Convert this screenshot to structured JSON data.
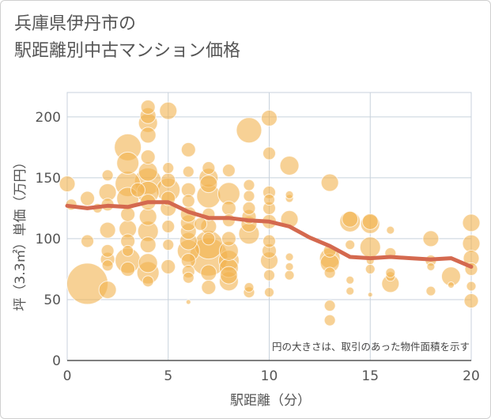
{
  "chart_data": {
    "type": "scatter",
    "title_lines": [
      "兵庫県伊丹市の",
      "駅距離別中古マンション価格"
    ],
    "xlabel": "駅距離（分）",
    "ylabel": "坪（3.3㎡）単価（万円）",
    "xlim": [
      0,
      20
    ],
    "ylim": [
      0,
      220
    ],
    "x_ticks": [
      0,
      5,
      10,
      15,
      20
    ],
    "y_ticks": [
      0,
      50,
      100,
      150,
      200
    ],
    "grid": true,
    "note": "円の大きさは、取引のあった物件面積を示す",
    "bubble_color": "#f2b24e",
    "line_color": "#d4694f",
    "trend": {
      "x": [
        0,
        1,
        2,
        3,
        4,
        5,
        6,
        7,
        8,
        9,
        10,
        11,
        12,
        13,
        14,
        15,
        16,
        17,
        18,
        19,
        20
      ],
      "y": [
        127,
        125,
        127,
        126,
        130,
        130,
        122,
        117,
        117,
        115,
        114,
        110,
        101,
        94,
        85,
        84,
        85,
        84,
        83,
        84,
        77
      ]
    },
    "points": [
      {
        "x": 0,
        "y": 145,
        "s": 10
      },
      {
        "x": 0.2,
        "y": 128,
        "s": 7
      },
      {
        "x": 1,
        "y": 63,
        "s": 26
      },
      {
        "x": 1,
        "y": 98,
        "s": 8
      },
      {
        "x": 1,
        "y": 133,
        "s": 9
      },
      {
        "x": 1.5,
        "y": 125,
        "s": 6
      },
      {
        "x": 2,
        "y": 58,
        "s": 11
      },
      {
        "x": 2,
        "y": 83,
        "s": 9
      },
      {
        "x": 2,
        "y": 90,
        "s": 8
      },
      {
        "x": 2,
        "y": 107,
        "s": 10
      },
      {
        "x": 2,
        "y": 128,
        "s": 8
      },
      {
        "x": 2,
        "y": 138,
        "s": 11
      },
      {
        "x": 2,
        "y": 152,
        "s": 7
      },
      {
        "x": 2,
        "y": 78,
        "s": 7
      },
      {
        "x": 3,
        "y": 75,
        "s": 9
      },
      {
        "x": 3,
        "y": 82,
        "s": 16
      },
      {
        "x": 3,
        "y": 98,
        "s": 9
      },
      {
        "x": 3,
        "y": 108,
        "s": 11
      },
      {
        "x": 3,
        "y": 120,
        "s": 9
      },
      {
        "x": 3,
        "y": 133,
        "s": 14
      },
      {
        "x": 3,
        "y": 145,
        "s": 16
      },
      {
        "x": 3,
        "y": 162,
        "s": 14
      },
      {
        "x": 3,
        "y": 175,
        "s": 17
      },
      {
        "x": 3,
        "y": 90,
        "s": 7
      },
      {
        "x": 3.5,
        "y": 140,
        "s": 9
      },
      {
        "x": 4,
        "y": 72,
        "s": 14
      },
      {
        "x": 4,
        "y": 80,
        "s": 12
      },
      {
        "x": 4,
        "y": 95,
        "s": 10
      },
      {
        "x": 4,
        "y": 106,
        "s": 13
      },
      {
        "x": 4,
        "y": 118,
        "s": 11
      },
      {
        "x": 4,
        "y": 130,
        "s": 10
      },
      {
        "x": 4,
        "y": 138,
        "s": 14
      },
      {
        "x": 4,
        "y": 147,
        "s": 17
      },
      {
        "x": 4,
        "y": 155,
        "s": 12
      },
      {
        "x": 4,
        "y": 167,
        "s": 9
      },
      {
        "x": 4,
        "y": 185,
        "s": 10
      },
      {
        "x": 4,
        "y": 195,
        "s": 12
      },
      {
        "x": 4,
        "y": 201,
        "s": 10
      },
      {
        "x": 4,
        "y": 208,
        "s": 9
      },
      {
        "x": 4,
        "y": 65,
        "s": 7
      },
      {
        "x": 5,
        "y": 77,
        "s": 9
      },
      {
        "x": 5,
        "y": 95,
        "s": 7
      },
      {
        "x": 5,
        "y": 110,
        "s": 8
      },
      {
        "x": 5,
        "y": 125,
        "s": 10
      },
      {
        "x": 5,
        "y": 133,
        "s": 9
      },
      {
        "x": 5,
        "y": 140,
        "s": 15
      },
      {
        "x": 5,
        "y": 148,
        "s": 9
      },
      {
        "x": 5,
        "y": 158,
        "s": 7
      },
      {
        "x": 5,
        "y": 205,
        "s": 11
      },
      {
        "x": 6,
        "y": 48,
        "s": 3
      },
      {
        "x": 6,
        "y": 68,
        "s": 7
      },
      {
        "x": 6,
        "y": 73,
        "s": 8
      },
      {
        "x": 6,
        "y": 82,
        "s": 9
      },
      {
        "x": 6,
        "y": 90,
        "s": 14
      },
      {
        "x": 6,
        "y": 98,
        "s": 11
      },
      {
        "x": 6,
        "y": 106,
        "s": 10
      },
      {
        "x": 6,
        "y": 113,
        "s": 10
      },
      {
        "x": 6,
        "y": 120,
        "s": 10
      },
      {
        "x": 6,
        "y": 131,
        "s": 8
      },
      {
        "x": 6,
        "y": 140,
        "s": 9
      },
      {
        "x": 6,
        "y": 155,
        "s": 7
      },
      {
        "x": 6,
        "y": 173,
        "s": 9
      },
      {
        "x": 7,
        "y": 60,
        "s": 9
      },
      {
        "x": 7,
        "y": 72,
        "s": 10
      },
      {
        "x": 7,
        "y": 85,
        "s": 24
      },
      {
        "x": 7,
        "y": 95,
        "s": 18
      },
      {
        "x": 7,
        "y": 110,
        "s": 10
      },
      {
        "x": 7,
        "y": 120,
        "s": 8
      },
      {
        "x": 7,
        "y": 135,
        "s": 15
      },
      {
        "x": 7,
        "y": 145,
        "s": 11
      },
      {
        "x": 7,
        "y": 150,
        "s": 12
      },
      {
        "x": 7,
        "y": 158,
        "s": 8
      },
      {
        "x": 7,
        "y": 100,
        "s": 8
      },
      {
        "x": 6.6,
        "y": 112,
        "s": 8
      },
      {
        "x": 8,
        "y": 65,
        "s": 12
      },
      {
        "x": 8,
        "y": 70,
        "s": 11
      },
      {
        "x": 8,
        "y": 76,
        "s": 12
      },
      {
        "x": 8,
        "y": 82,
        "s": 13
      },
      {
        "x": 8,
        "y": 90,
        "s": 12
      },
      {
        "x": 8,
        "y": 100,
        "s": 9
      },
      {
        "x": 8,
        "y": 115,
        "s": 8
      },
      {
        "x": 8,
        "y": 125,
        "s": 9
      },
      {
        "x": 8,
        "y": 137,
        "s": 14
      },
      {
        "x": 8,
        "y": 156,
        "s": 8
      },
      {
        "x": 9,
        "y": 56,
        "s": 7
      },
      {
        "x": 9,
        "y": 60,
        "s": 6
      },
      {
        "x": 9,
        "y": 104,
        "s": 13
      },
      {
        "x": 9,
        "y": 112,
        "s": 10
      },
      {
        "x": 9,
        "y": 118,
        "s": 9
      },
      {
        "x": 9,
        "y": 125,
        "s": 8
      },
      {
        "x": 9,
        "y": 135,
        "s": 7
      },
      {
        "x": 9,
        "y": 144,
        "s": 7
      },
      {
        "x": 9,
        "y": 189,
        "s": 16
      },
      {
        "x": 10,
        "y": 56,
        "s": 6
      },
      {
        "x": 10,
        "y": 70,
        "s": 7
      },
      {
        "x": 10,
        "y": 82,
        "s": 11
      },
      {
        "x": 10,
        "y": 90,
        "s": 9
      },
      {
        "x": 10,
        "y": 98,
        "s": 8
      },
      {
        "x": 10,
        "y": 114,
        "s": 9
      },
      {
        "x": 10,
        "y": 125,
        "s": 8
      },
      {
        "x": 10,
        "y": 132,
        "s": 7
      },
      {
        "x": 10,
        "y": 138,
        "s": 8
      },
      {
        "x": 10,
        "y": 170,
        "s": 8
      },
      {
        "x": 10,
        "y": 199,
        "s": 10
      },
      {
        "x": 11,
        "y": 70,
        "s": 6
      },
      {
        "x": 11,
        "y": 77,
        "s": 5
      },
      {
        "x": 11,
        "y": 85,
        "s": 5
      },
      {
        "x": 11,
        "y": 116,
        "s": 11
      },
      {
        "x": 11,
        "y": 133,
        "s": 5
      },
      {
        "x": 11,
        "y": 136,
        "s": 5
      },
      {
        "x": 11,
        "y": 160,
        "s": 12
      },
      {
        "x": 13,
        "y": 33,
        "s": 7
      },
      {
        "x": 13,
        "y": 45,
        "s": 7
      },
      {
        "x": 13,
        "y": 72,
        "s": 7
      },
      {
        "x": 13,
        "y": 80,
        "s": 12
      },
      {
        "x": 13,
        "y": 84,
        "s": 13
      },
      {
        "x": 13,
        "y": 90,
        "s": 8
      },
      {
        "x": 13,
        "y": 146,
        "s": 11
      },
      {
        "x": 14,
        "y": 57,
        "s": 5
      },
      {
        "x": 14,
        "y": 66,
        "s": 5
      },
      {
        "x": 14,
        "y": 95,
        "s": 6
      },
      {
        "x": 14,
        "y": 114,
        "s": 13
      },
      {
        "x": 14,
        "y": 116,
        "s": 10
      },
      {
        "x": 15,
        "y": 54,
        "s": 3
      },
      {
        "x": 15,
        "y": 75,
        "s": 6
      },
      {
        "x": 15,
        "y": 82,
        "s": 5
      },
      {
        "x": 15,
        "y": 93,
        "s": 13
      },
      {
        "x": 15,
        "y": 112,
        "s": 12
      },
      {
        "x": 15,
        "y": 114,
        "s": 10
      },
      {
        "x": 16,
        "y": 63,
        "s": 11
      },
      {
        "x": 16,
        "y": 69,
        "s": 6
      },
      {
        "x": 16,
        "y": 72,
        "s": 6
      },
      {
        "x": 16,
        "y": 88,
        "s": 7
      },
      {
        "x": 16,
        "y": 107,
        "s": 5
      },
      {
        "x": 18,
        "y": 57,
        "s": 6
      },
      {
        "x": 18,
        "y": 77,
        "s": 5
      },
      {
        "x": 18,
        "y": 82,
        "s": 7
      },
      {
        "x": 18,
        "y": 100,
        "s": 10
      },
      {
        "x": 19,
        "y": 62,
        "s": 4
      },
      {
        "x": 19,
        "y": 69,
        "s": 12
      },
      {
        "x": 20,
        "y": 49,
        "s": 9
      },
      {
        "x": 20,
        "y": 61,
        "s": 6
      },
      {
        "x": 20,
        "y": 75,
        "s": 8
      },
      {
        "x": 20,
        "y": 84,
        "s": 10
      },
      {
        "x": 20,
        "y": 96,
        "s": 11
      },
      {
        "x": 20,
        "y": 113,
        "s": 11
      }
    ]
  }
}
